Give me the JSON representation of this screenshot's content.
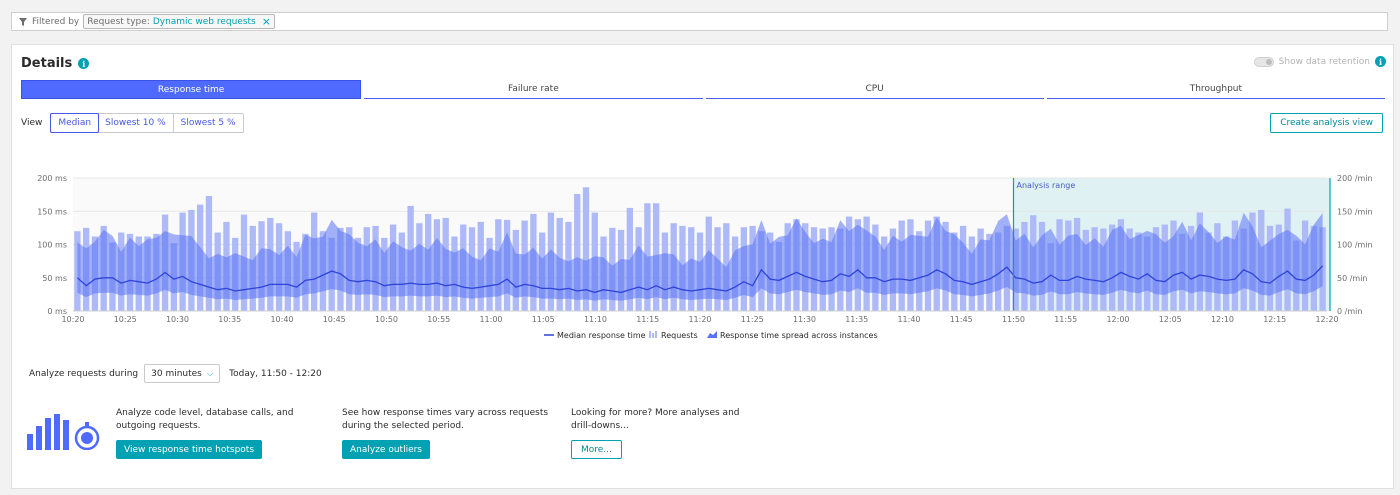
{
  "filter": {
    "label": "Filtered by",
    "chip_key": "Request type:",
    "chip_value": "Dynamic web requests",
    "chip_remove": "×"
  },
  "details": {
    "title": "Details",
    "info_icon": "i",
    "retention_label": "Show data retention"
  },
  "tabs": [
    {
      "label": "Response time",
      "active": true
    },
    {
      "label": "Failure rate",
      "active": false
    },
    {
      "label": "CPU",
      "active": false
    },
    {
      "label": "Throughput",
      "active": false
    }
  ],
  "view": {
    "label": "View",
    "options": [
      "Median",
      "Slowest 10 %",
      "Slowest 5 %"
    ],
    "selected": "Median",
    "create_button": "Create analysis view"
  },
  "chart_data": {
    "type": "bar",
    "y_left_ticks": [
      "200 ms",
      "150 ms",
      "100 ms",
      "50 ms",
      "0 ms"
    ],
    "y_right_ticks": [
      "200 /min",
      "150 /min",
      "100 /min",
      "50 /min",
      "0 /min"
    ],
    "ylim_left": [
      0,
      200
    ],
    "ylim_right": [
      0,
      200
    ],
    "x_ticks": [
      "10:20",
      "10:25",
      "10:30",
      "10:35",
      "10:40",
      "10:45",
      "10:50",
      "10:55",
      "11:00",
      "11:05",
      "11:10",
      "11:15",
      "11:20",
      "11:25",
      "11:30",
      "11:35",
      "11:40",
      "11:45",
      "11:50",
      "11:55",
      "12:00",
      "12:05",
      "12:10",
      "12:15",
      "12:20"
    ],
    "analysis_range_label": "Analysis range",
    "analysis_range": [
      "11:50",
      "12:20"
    ],
    "legend": [
      "Median response time",
      "Requests",
      "Response time spread across instances"
    ],
    "series": [
      {
        "name": "Requests",
        "values": [
          120,
          125,
          112,
          128,
          103,
          118,
          116,
          112,
          112,
          116,
          145,
          102,
          148,
          152,
          160,
          173,
          118,
          134,
          110,
          145,
          128,
          135,
          140,
          132,
          120,
          104,
          116,
          148,
          120,
          110,
          125,
          126,
          110,
          126,
          128,
          110,
          130,
          118,
          158,
          132,
          146,
          138,
          140,
          112,
          130,
          126,
          134,
          110,
          138,
          137,
          122,
          136,
          146,
          118,
          148,
          140,
          134,
          176,
          186,
          148,
          112,
          125,
          122,
          155,
          126,
          162,
          162,
          118,
          132,
          128,
          126,
          118,
          142,
          126,
          132,
          112,
          126,
          128,
          120,
          118,
          104,
          132,
          138,
          132,
          126,
          124,
          126,
          124,
          142,
          138,
          142,
          130,
          112,
          124,
          136,
          138,
          120,
          136,
          142,
          134,
          118,
          128,
          112,
          124,
          116,
          118,
          128,
          124,
          134,
          144,
          134,
          102,
          138,
          136,
          140,
          122,
          126,
          124,
          130,
          138,
          124,
          118,
          112,
          126,
          130,
          136,
          116,
          128,
          148,
          118,
          132,
          112,
          136,
          124,
          148,
          152,
          128,
          130,
          154,
          106,
          136,
          128,
          126
        ]
      },
      {
        "name": "Median response time",
        "values": [
          50,
          38,
          48,
          50,
          50,
          42,
          46,
          44,
          42,
          48,
          58,
          48,
          52,
          44,
          40,
          36,
          32,
          34,
          30,
          32,
          34,
          36,
          40,
          40,
          40,
          36,
          46,
          48,
          54,
          60,
          56,
          46,
          44,
          46,
          44,
          38,
          40,
          40,
          42,
          40,
          40,
          42,
          38,
          40,
          36,
          34,
          36,
          38,
          40,
          48,
          36,
          40,
          38,
          34,
          34,
          32,
          34,
          30,
          32,
          28,
          32,
          30,
          28,
          32,
          36,
          32,
          38,
          32,
          36,
          32,
          30,
          32,
          34,
          32,
          30,
          36,
          44,
          38,
          62,
          48,
          46,
          52,
          58,
          52,
          48,
          44,
          46,
          56,
          52,
          62,
          50,
          50,
          44,
          48,
          48,
          46,
          50,
          54,
          62,
          56,
          46,
          44,
          40,
          44,
          48,
          56,
          66,
          50,
          48,
          42,
          44,
          54,
          46,
          46,
          52,
          48,
          46,
          44,
          50,
          58,
          52,
          48,
          56,
          46,
          44,
          54,
          58,
          48,
          54,
          52,
          48,
          46,
          48,
          62,
          56,
          44,
          42,
          52,
          60,
          48,
          46,
          54,
          68
        ]
      }
    ]
  },
  "analyze": {
    "label": "Analyze requests during",
    "duration": "30 minutes",
    "range_text": "Today, 11:50 - 12:20"
  },
  "actions": [
    {
      "text": "Analyze code level, database calls, and outgoing requests.",
      "button": "View response time hotspots"
    },
    {
      "text": "See how response times vary across requests during the selected period.",
      "button": "Analyze outliers"
    },
    {
      "text": "Looking for more? More analyses and drill-downs...",
      "button": "More..."
    }
  ]
}
